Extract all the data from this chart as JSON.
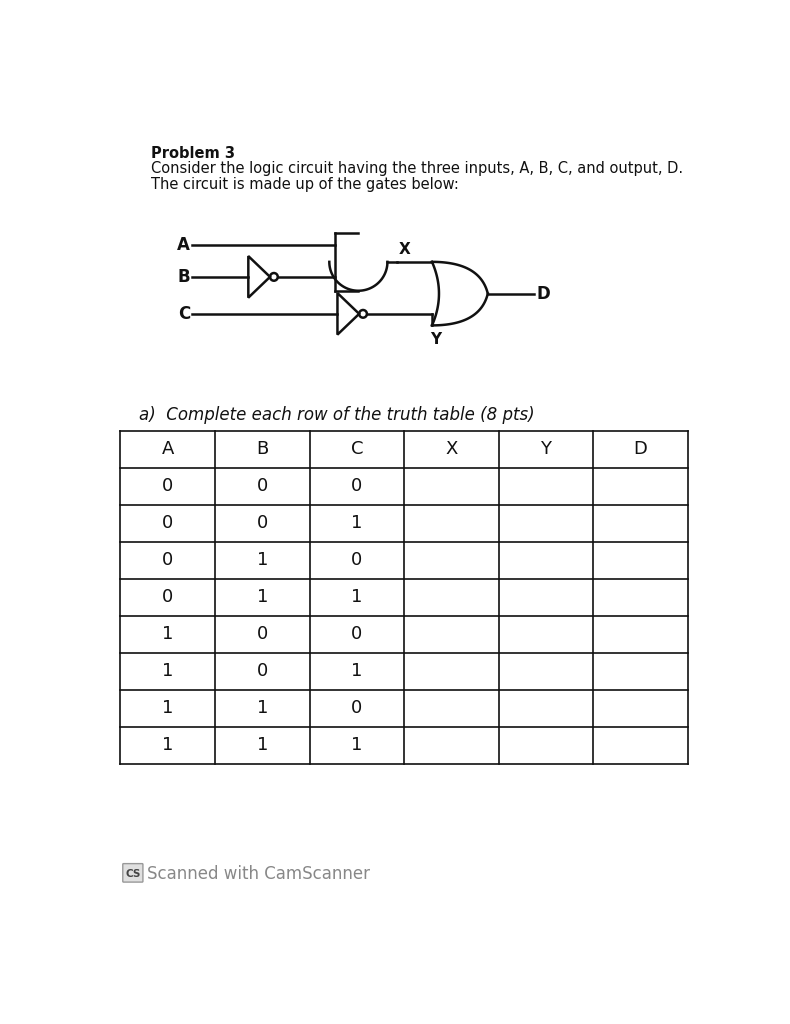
{
  "title_bold": "Problem 3",
  "line1": "Consider the logic circuit having the three inputs, A, B, C, and output, D.",
  "line2": "The circuit is made up of the gates below:",
  "part_a": "a)  Complete each row of the truth table (8 pts)",
  "table_headers": [
    "A",
    "B",
    "C",
    "X",
    "Y",
    "D"
  ],
  "table_rows": [
    [
      "0",
      "0",
      "0",
      "",
      "",
      ""
    ],
    [
      "0",
      "0",
      "1",
      "",
      "",
      ""
    ],
    [
      "0",
      "1",
      "0",
      "",
      "",
      ""
    ],
    [
      "0",
      "1",
      "1",
      "",
      "",
      ""
    ],
    [
      "1",
      "0",
      "0",
      "",
      "",
      ""
    ],
    [
      "1",
      "0",
      "1",
      "",
      "",
      ""
    ],
    [
      "1",
      "1",
      "0",
      "",
      "",
      ""
    ],
    [
      "1",
      "1",
      "1",
      "",
      "",
      ""
    ]
  ],
  "bg_color": "#ffffff",
  "text_color": "#111111",
  "footer_text": "Scanned with CamScanner"
}
